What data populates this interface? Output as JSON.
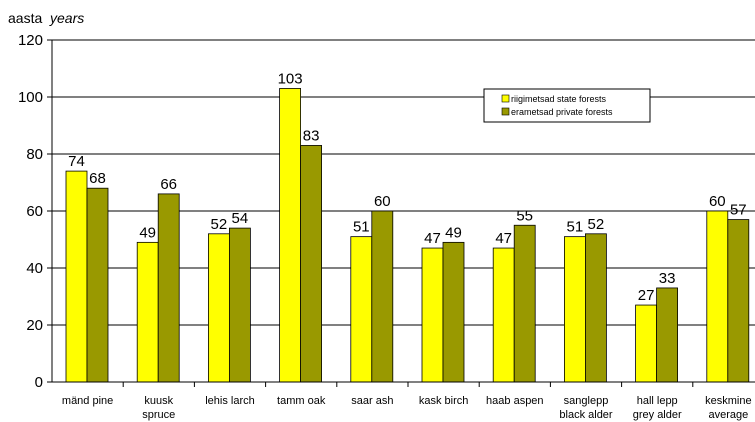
{
  "chart_data": {
    "type": "bar",
    "ylabel": "aasta",
    "ylabel_italic": "years",
    "ylim": [
      0,
      120
    ],
    "yticks": [
      0,
      20,
      40,
      60,
      80,
      100,
      120
    ],
    "grid": "horizontal",
    "legend_position": "top-right",
    "categories": [
      [
        "mänd pine"
      ],
      [
        "kuusk",
        "spruce"
      ],
      [
        "lehis larch"
      ],
      [
        "tamm oak"
      ],
      [
        "saar ash"
      ],
      [
        "kask birch"
      ],
      [
        "haab aspen"
      ],
      [
        "sanglepp",
        "black alder"
      ],
      [
        "hall lepp",
        "grey alder"
      ],
      [
        "keskmine",
        "average"
      ]
    ],
    "series": [
      {
        "name": "riigimetsad state forests",
        "color": "#ffff00",
        "values": [
          74,
          49,
          52,
          103,
          51,
          47,
          47,
          51,
          27,
          60
        ]
      },
      {
        "name": "erametsad private forests",
        "color": "#999900",
        "values": [
          68,
          66,
          54,
          83,
          60,
          49,
          55,
          52,
          33,
          57
        ]
      }
    ]
  }
}
